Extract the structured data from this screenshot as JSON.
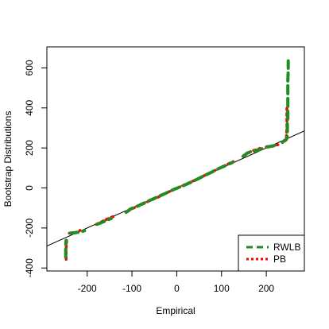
{
  "chart_data": {
    "type": "line",
    "title": "",
    "xlabel": "Empirical",
    "ylabel": "Bootstrap Distributions",
    "xlim": [
      -290,
      285
    ],
    "ylim": [
      -415,
      705
    ],
    "xticks": [
      -200,
      -100,
      0,
      100,
      200
    ],
    "yticks": [
      -400,
      -200,
      0,
      200,
      400,
      600
    ],
    "xtick_labels": [
      "-200",
      "-100",
      "0",
      "100",
      "200"
    ],
    "ytick_labels": [
      "-400",
      "-200",
      "0",
      "200",
      "400",
      "600"
    ],
    "grid": false,
    "legend_position": "bottom-right",
    "reference_line": {
      "x": [
        -290,
        285
      ],
      "y": [
        -290,
        285
      ],
      "color": "#000000"
    },
    "series": [
      {
        "name": "PB",
        "color": "#ff0000",
        "dash": "dotted",
        "segments": [
          [
            [
              -247,
              -357
            ],
            [
              -247,
              -300
            ],
            [
              -246,
              -272
            ],
            [
              -246,
              -262
            ]
          ],
          [
            [
              -240,
              -226
            ],
            [
              -228,
              -223
            ],
            [
              -219,
              -220
            ],
            [
              -216,
              -212
            ]
          ],
          [
            [
              -180,
              -182
            ],
            [
              -170,
              -172
            ],
            [
              -163,
              -163
            ],
            [
              -150,
              -150
            ],
            [
              -142,
              -143
            ]
          ],
          [
            [
              -110,
              -118
            ],
            [
              -100,
              -104
            ],
            [
              -80,
              -85
            ],
            [
              -60,
              -63
            ],
            [
              -40,
              -44
            ],
            [
              -20,
              -22
            ],
            [
              0,
              -2
            ],
            [
              20,
              18
            ],
            [
              40,
              38
            ],
            [
              60,
              60
            ],
            [
              80,
              82
            ],
            [
              100,
              104
            ],
            [
              115,
              120
            ],
            [
              126,
              132
            ]
          ],
          [
            [
              150,
              160
            ],
            [
              160,
              175
            ],
            [
              168,
              186
            ],
            [
              176,
              190
            ],
            [
              186,
              198
            ]
          ],
          [
            [
              200,
              205
            ],
            [
              210,
              209
            ],
            [
              220,
              212
            ],
            [
              226,
              216
            ]
          ],
          [
            [
              238,
              232
            ],
            [
              244,
              238
            ],
            [
              245,
              260
            ],
            [
              246,
              300
            ],
            [
              246,
              340
            ],
            [
              246,
              398
            ]
          ]
        ]
      },
      {
        "name": "RWLB",
        "color": "#228b22",
        "dash": "dashed",
        "segments": [
          [
            [
              -248,
              -346
            ],
            [
              -248,
              -300
            ],
            [
              -247,
              -262
            ]
          ],
          [
            [
              -238,
              -226
            ],
            [
              -225,
              -223
            ],
            [
              -213,
              -219
            ],
            [
              -206,
              -214
            ]
          ],
          [
            [
              -178,
              -182
            ],
            [
              -168,
              -173
            ],
            [
              -160,
              -165
            ],
            [
              -146,
              -152
            ]
          ],
          [
            [
              -113,
              -122
            ],
            [
              -104,
              -106
            ],
            [
              -85,
              -88
            ],
            [
              -65,
              -67
            ],
            [
              -45,
              -47
            ],
            [
              -25,
              -27
            ],
            [
              -5,
              -6
            ],
            [
              15,
              12
            ],
            [
              35,
              32
            ],
            [
              55,
              54
            ],
            [
              75,
              76
            ],
            [
              95,
              98
            ],
            [
              110,
              113
            ],
            [
              125,
              128
            ]
          ],
          [
            [
              148,
              158
            ],
            [
              158,
              175
            ],
            [
              170,
              183
            ],
            [
              180,
              188
            ],
            [
              190,
              196
            ]
          ],
          [
            [
              202,
              205
            ],
            [
              215,
              210
            ],
            [
              228,
              220
            ]
          ],
          [
            [
              236,
              228
            ],
            [
              240,
              236
            ],
            [
              245,
              243
            ],
            [
              247,
              262
            ],
            [
              247,
              320
            ],
            [
              248,
              345
            ],
            [
              248,
              380
            ],
            [
              248,
              460
            ],
            [
              248,
              540
            ],
            [
              249,
              585
            ],
            [
              249,
              635
            ]
          ]
        ]
      }
    ]
  },
  "legend": {
    "items": [
      {
        "label": "RWLB",
        "color": "#228b22",
        "dash": "dashed"
      },
      {
        "label": "PB",
        "color": "#ff0000",
        "dash": "dotted"
      }
    ]
  }
}
